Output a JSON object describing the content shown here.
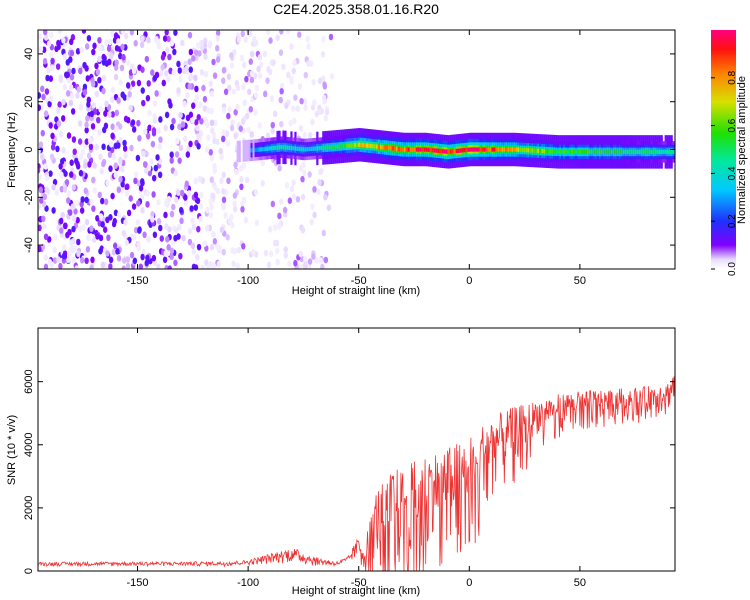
{
  "title": "C2E4.2025.358.01.16.R20",
  "chart_data": [
    {
      "type": "heatmap",
      "xlabel": "Height of straight line (km)",
      "ylabel": "Frequency (Hz)",
      "xlim": [
        -195,
        93
      ],
      "ylim": [
        -50,
        50
      ],
      "xticks": [
        -150,
        -100,
        -50,
        0,
        50
      ],
      "yticks": [
        -40,
        -20,
        0,
        20,
        40
      ],
      "colorbar": {
        "label": "Normalized spectral amplitude",
        "range": [
          0,
          1
        ],
        "ticks": [
          "0.0",
          "0.2",
          "0.4",
          "0.6",
          "0.8"
        ]
      },
      "ridge": {
        "description_points_x": [
          -107,
          -95,
          -85,
          -75,
          -62,
          -50,
          -40,
          -30,
          -20,
          -10,
          0,
          10,
          20,
          40,
          60,
          80,
          93
        ],
        "center_freq": [
          -1,
          0,
          1,
          0,
          1,
          2,
          1,
          0,
          0,
          -1,
          0,
          0,
          0,
          -1,
          -1,
          -1,
          -1
        ],
        "peak_amplitude": [
          0.2,
          0.3,
          0.45,
          0.35,
          0.5,
          0.7,
          0.8,
          0.85,
          0.95,
          0.95,
          0.95,
          0.9,
          0.75,
          0.55,
          0.55,
          0.5,
          0.45
        ]
      },
      "noise_region_x": [
        -195,
        -62
      ]
    },
    {
      "type": "line",
      "xlabel": "Height of straight line (km)",
      "ylabel": "SNR (10 * v/v)",
      "xlim": [
        -195,
        93
      ],
      "ylim": [
        0,
        7700
      ],
      "xticks": [
        -150,
        -100,
        -50,
        0,
        50
      ],
      "yticks": [
        0,
        2000,
        4000,
        6000
      ],
      "color": "#ee3333",
      "envelope": {
        "x": [
          -195,
          -110,
          -100,
          -80,
          -70,
          -60,
          -55,
          -50,
          -48,
          -45,
          -42,
          -38,
          -35,
          -30,
          -25,
          -20,
          -10,
          0,
          10,
          20,
          30,
          40,
          50,
          60,
          70,
          80,
          90,
          93
        ],
        "lower": [
          150,
          150,
          180,
          250,
          150,
          150,
          200,
          400,
          300,
          200,
          300,
          500,
          600,
          700,
          900,
          1100,
          1500,
          2000,
          2700,
          3500,
          4300,
          4700,
          4900,
          5000,
          5100,
          5100,
          5100,
          5100
        ],
        "upper": [
          280,
          300,
          350,
          750,
          450,
          300,
          450,
          1100,
          800,
          1600,
          2600,
          2900,
          3300,
          3200,
          3500,
          3700,
          3900,
          4300,
          4900,
          5200,
          5400,
          5600,
          5700,
          5750,
          5800,
          5850,
          6000,
          6500
        ]
      }
    }
  ]
}
